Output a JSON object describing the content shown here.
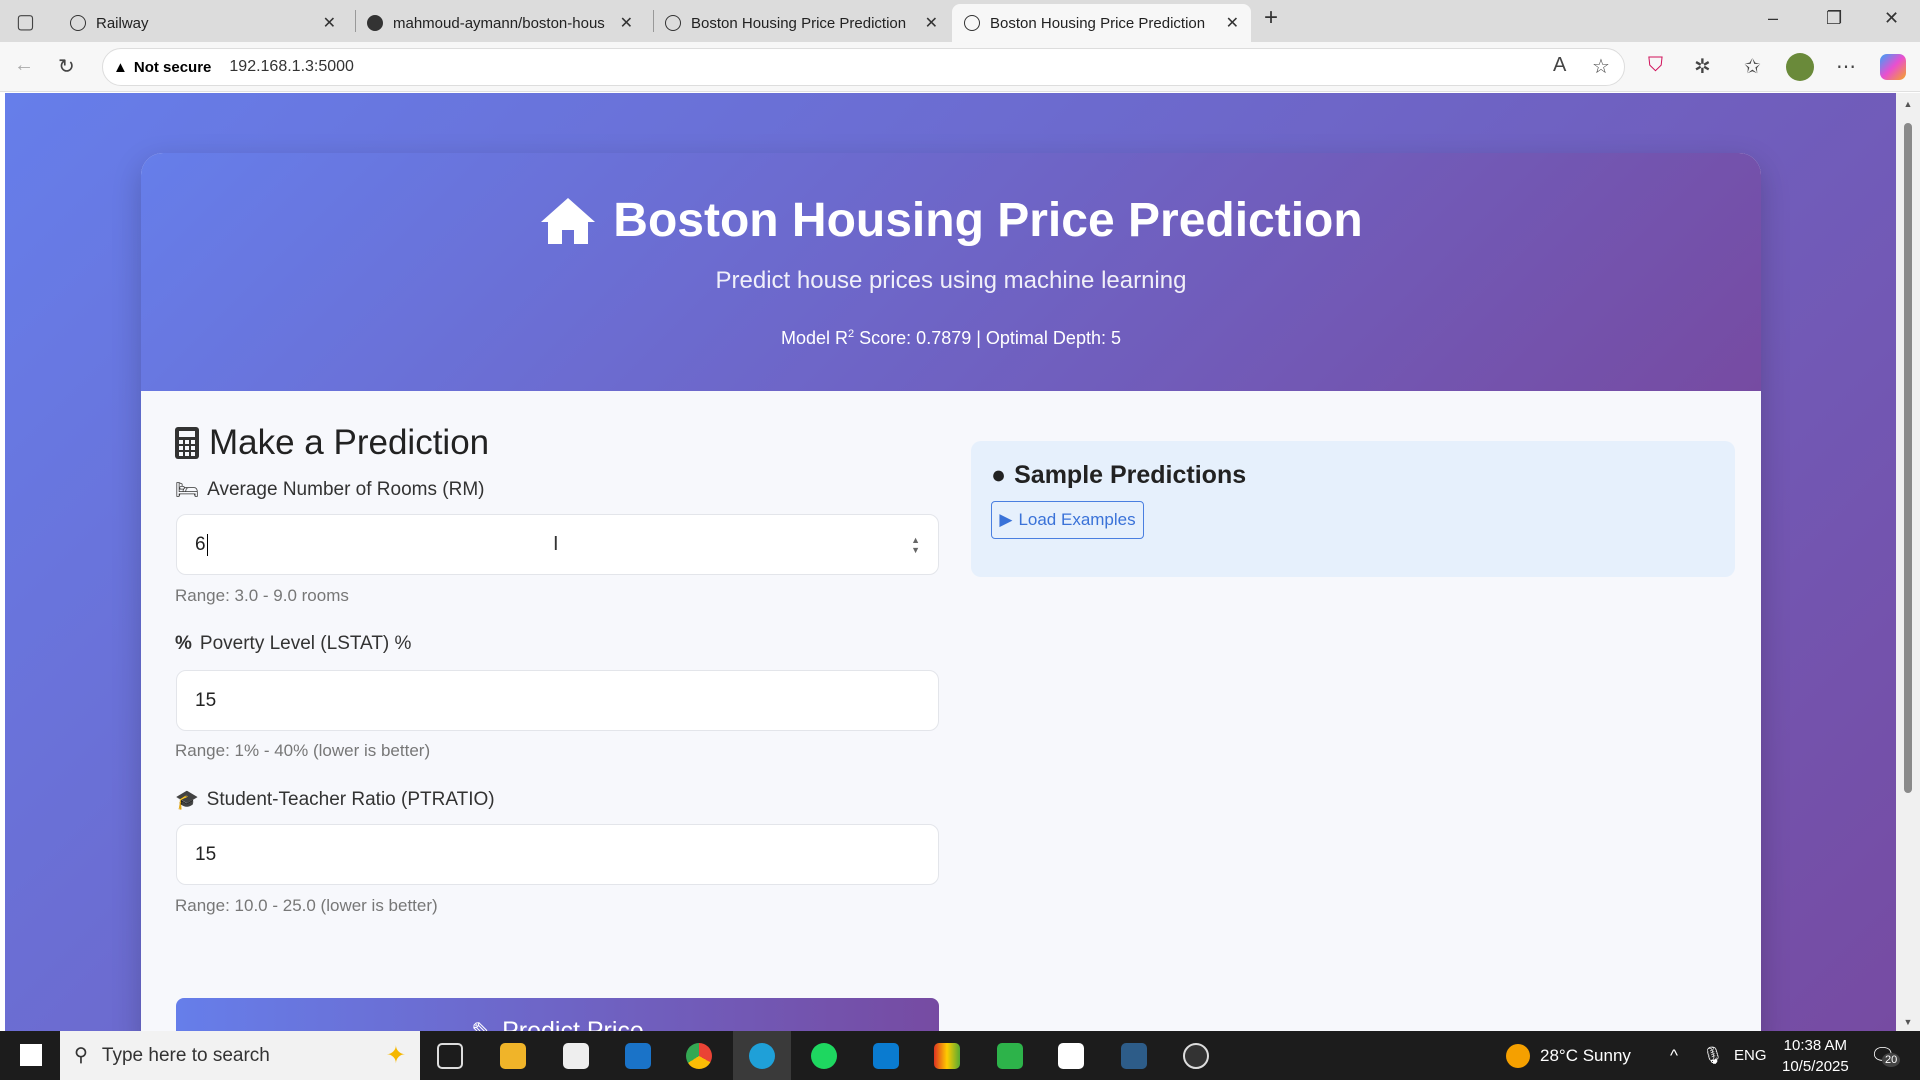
{
  "browser": {
    "tabs": [
      {
        "label": "Railway"
      },
      {
        "label": "mahmoud-aymann/boston-hous"
      },
      {
        "label": "Boston Housing Price Prediction"
      },
      {
        "label": "Boston Housing Price Prediction",
        "active": true
      }
    ],
    "security": "Not secure",
    "url": "192.168.1.3:5000"
  },
  "header": {
    "title": "Boston Housing Price Prediction",
    "subtitle": "Predict house prices using machine learning",
    "model_prefix": "Model R",
    "model_sup": "2",
    "model_suffix": " Score: 0.7879 | Optimal Depth: 5"
  },
  "form": {
    "title": "Make a Prediction",
    "fields": [
      {
        "label": "Average Number of Rooms (RM)",
        "value": "6",
        "range": "Range: 3.0 - 9.0 rooms",
        "icon": "bed-icon"
      },
      {
        "label": "Poverty Level (LSTAT) %",
        "value": "15",
        "range": "Range: 1% - 40% (lower is better)",
        "icon": "percent-icon"
      },
      {
        "label": "Student-Teacher Ratio (PTRATIO)",
        "value": "15",
        "range": "Range: 10.0 - 25.0 (lower is better)",
        "icon": "graduation-cap-icon"
      }
    ],
    "submit": "Predict Price"
  },
  "samples": {
    "title": "Sample Predictions",
    "button": "Load Examples"
  },
  "taskbar": {
    "search_placeholder": "Type here to search",
    "weather": "28°C  Sunny",
    "lang": "ENG",
    "time": "10:38 AM",
    "date": "10/5/2025",
    "notifications": "20"
  }
}
